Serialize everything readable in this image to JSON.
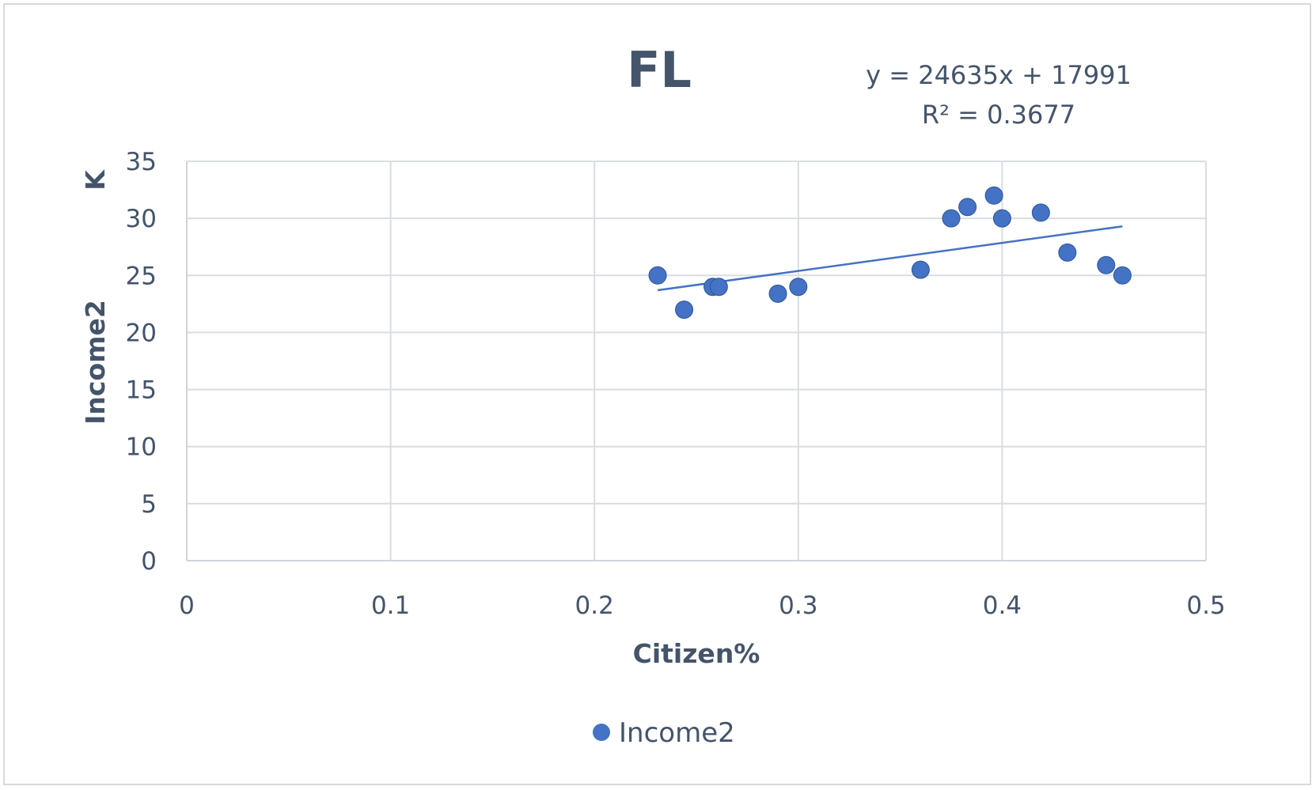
{
  "chart_data": {
    "type": "scatter",
    "title": "FL",
    "xlabel": "Citizen%",
    "ylabel": "Income2",
    "yunit_label": "K",
    "xlim": [
      0,
      0.5
    ],
    "ylim": [
      0,
      35
    ],
    "x_ticks": [
      "0",
      "0.1",
      "0.2",
      "0.3",
      "0.4",
      "0.5"
    ],
    "y_ticks": [
      "0",
      "5",
      "10",
      "15",
      "20",
      "25",
      "30",
      "35"
    ],
    "grid": true,
    "legend_position": "bottom",
    "series": [
      {
        "name": "Income2",
        "color": "#4472c4",
        "points": [
          {
            "x": 0.231,
            "y": 25.0
          },
          {
            "x": 0.244,
            "y": 22.0
          },
          {
            "x": 0.258,
            "y": 24.0
          },
          {
            "x": 0.261,
            "y": 24.0
          },
          {
            "x": 0.29,
            "y": 23.4
          },
          {
            "x": 0.3,
            "y": 24.0
          },
          {
            "x": 0.36,
            "y": 25.5
          },
          {
            "x": 0.375,
            "y": 30.0
          },
          {
            "x": 0.383,
            "y": 31.0
          },
          {
            "x": 0.396,
            "y": 32.0
          },
          {
            "x": 0.4,
            "y": 30.0
          },
          {
            "x": 0.419,
            "y": 30.5
          },
          {
            "x": 0.432,
            "y": 27.0
          },
          {
            "x": 0.451,
            "y": 25.9
          },
          {
            "x": 0.459,
            "y": 25.0
          }
        ]
      }
    ],
    "trendline": {
      "type": "linear",
      "x_range": [
        0.231,
        0.459
      ],
      "y_range": [
        23.7,
        29.3
      ],
      "equation": "y = 24635x + 17991",
      "r_squared": "R² = 0.3677"
    }
  }
}
